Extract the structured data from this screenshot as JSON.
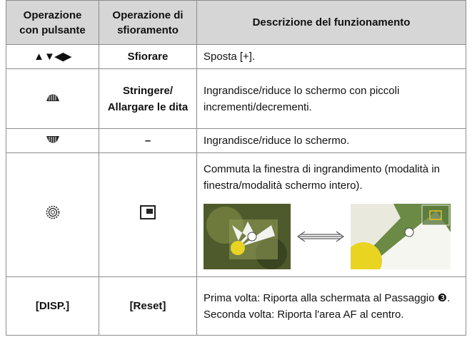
{
  "header": [
    "Operazione\ncon pulsante",
    "Operazione di\nsfioramento",
    "Descrizione del funzionamento"
  ],
  "rows": [
    {
      "button": "▲▼◀▶",
      "touch": "Sfiorare",
      "description": [
        "Sposta [+]."
      ]
    },
    {
      "touch": "Stringere/\nAllargare le dita",
      "description": [
        "Ingrandisce/riduce lo schermo con piccoli incrementi/decrementi."
      ]
    },
    {
      "touch": "–",
      "description": [
        "Ingrandisce/riduce lo schermo."
      ]
    },
    {
      "description": [
        "Commuta la finestra di ingrandimento (modalità in finestra/modalità schermo intero)."
      ]
    },
    {
      "button": "[DISP.]",
      "touch": "[Reset]",
      "description": [
        "Prima volta: Riporta alla schermata al Passaggio ❸.",
        "Seconda volta: Riporta l'area AF al centro."
      ]
    }
  ]
}
